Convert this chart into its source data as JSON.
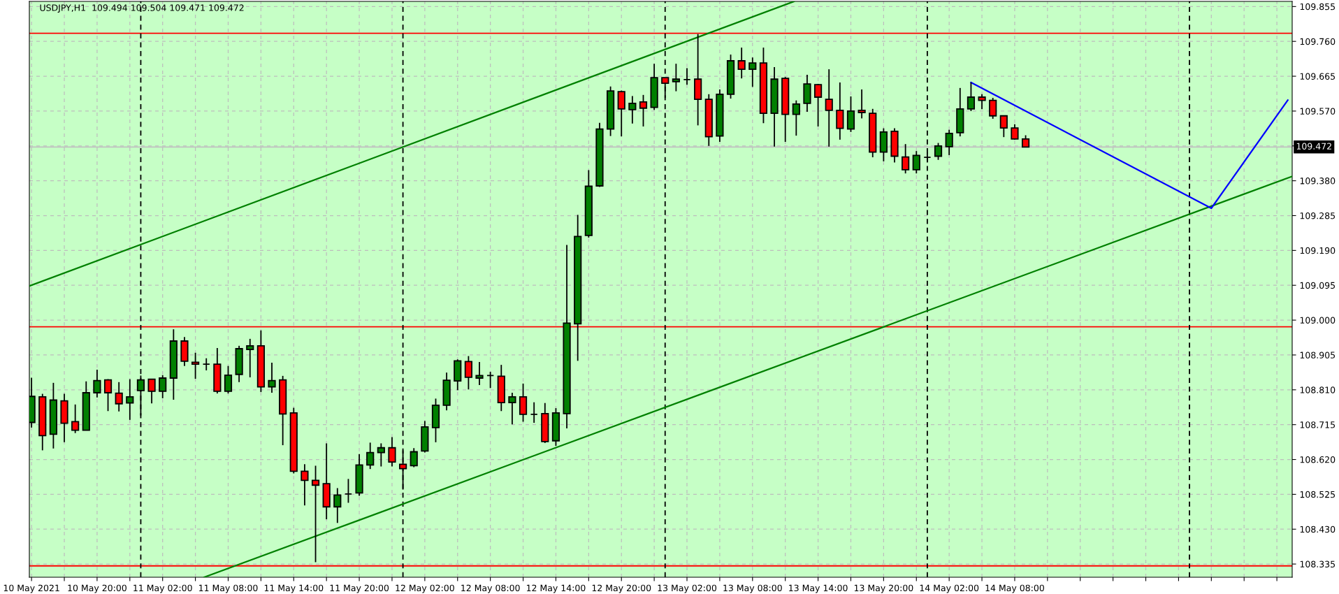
{
  "chart_data": {
    "type": "candlestick",
    "title": "USDJPY,H1  109.494 109.504 109.471 109.472",
    "x": [
      "2021-05-10T14:00",
      "2021-05-10T15:00",
      "2021-05-10T16:00",
      "2021-05-10T17:00",
      "2021-05-10T18:00",
      "2021-05-10T19:00",
      "2021-05-10T20:00",
      "2021-05-10T21:00",
      "2021-05-10T22:00",
      "2021-05-10T23:00",
      "2021-05-11T00:00",
      "2021-05-11T01:00",
      "2021-05-11T02:00",
      "2021-05-11T03:00",
      "2021-05-11T04:00",
      "2021-05-11T05:00",
      "2021-05-11T06:00",
      "2021-05-11T07:00",
      "2021-05-11T08:00",
      "2021-05-11T09:00",
      "2021-05-11T10:00",
      "2021-05-11T11:00",
      "2021-05-11T12:00",
      "2021-05-11T13:00",
      "2021-05-11T14:00",
      "2021-05-11T15:00",
      "2021-05-11T16:00",
      "2021-05-11T17:00",
      "2021-05-11T18:00",
      "2021-05-11T19:00",
      "2021-05-11T20:00",
      "2021-05-11T21:00",
      "2021-05-11T22:00",
      "2021-05-11T23:00",
      "2021-05-12T00:00",
      "2021-05-12T01:00",
      "2021-05-12T02:00",
      "2021-05-12T03:00",
      "2021-05-12T04:00",
      "2021-05-12T05:00",
      "2021-05-12T06:00",
      "2021-05-12T07:00",
      "2021-05-12T08:00",
      "2021-05-12T09:00",
      "2021-05-12T10:00",
      "2021-05-12T11:00",
      "2021-05-12T12:00",
      "2021-05-12T13:00",
      "2021-05-12T14:00",
      "2021-05-12T15:00",
      "2021-05-12T16:00",
      "2021-05-12T17:00",
      "2021-05-12T18:00",
      "2021-05-12T19:00",
      "2021-05-12T20:00",
      "2021-05-12T21:00",
      "2021-05-12T22:00",
      "2021-05-12T23:00",
      "2021-05-13T00:00",
      "2021-05-13T01:00",
      "2021-05-13T02:00",
      "2021-05-13T03:00",
      "2021-05-13T04:00",
      "2021-05-13T05:00",
      "2021-05-13T06:00",
      "2021-05-13T07:00",
      "2021-05-13T08:00",
      "2021-05-13T09:00",
      "2021-05-13T10:00",
      "2021-05-13T11:00",
      "2021-05-13T12:00",
      "2021-05-13T13:00",
      "2021-05-13T14:00",
      "2021-05-13T15:00",
      "2021-05-13T16:00",
      "2021-05-13T17:00",
      "2021-05-13T18:00",
      "2021-05-13T19:00",
      "2021-05-13T20:00",
      "2021-05-13T21:00",
      "2021-05-13T22:00",
      "2021-05-13T23:00",
      "2021-05-14T00:00",
      "2021-05-14T01:00",
      "2021-05-14T02:00",
      "2021-05-14T03:00",
      "2021-05-14T04:00",
      "2021-05-14T05:00",
      "2021-05-14T06:00",
      "2021-05-14T07:00",
      "2021-05-14T08:00",
      "2021-05-14T09:00"
    ],
    "ohlc": [
      [
        108.721,
        108.843,
        108.707,
        108.792
      ],
      [
        108.791,
        108.799,
        108.645,
        108.685
      ],
      [
        108.689,
        108.829,
        108.65,
        108.782
      ],
      [
        108.78,
        108.799,
        108.667,
        108.719
      ],
      [
        108.723,
        108.77,
        108.692,
        108.7
      ],
      [
        108.7,
        108.833,
        108.7,
        108.802
      ],
      [
        108.802,
        108.865,
        108.789,
        108.835
      ],
      [
        108.837,
        108.839,
        108.752,
        108.802
      ],
      [
        108.801,
        108.831,
        108.751,
        108.772
      ],
      [
        108.774,
        108.839,
        108.728,
        108.791
      ],
      [
        108.808,
        108.849,
        108.74,
        108.837
      ],
      [
        108.839,
        108.839,
        108.773,
        108.806
      ],
      [
        108.806,
        108.85,
        108.787,
        108.842
      ],
      [
        108.842,
        108.975,
        108.783,
        108.943
      ],
      [
        108.943,
        108.954,
        108.875,
        108.888
      ],
      [
        108.885,
        108.911,
        108.84,
        108.88
      ],
      [
        108.88,
        108.896,
        108.863,
        108.88
      ],
      [
        108.88,
        108.924,
        108.8,
        108.806
      ],
      [
        108.806,
        108.875,
        108.8,
        108.85
      ],
      [
        108.852,
        108.93,
        108.831,
        108.922
      ],
      [
        108.92,
        108.949,
        108.844,
        108.93
      ],
      [
        108.93,
        108.972,
        108.804,
        108.818
      ],
      [
        108.818,
        108.884,
        108.802,
        108.835
      ],
      [
        108.837,
        108.848,
        108.659,
        108.744
      ],
      [
        108.747,
        108.761,
        108.582,
        108.588
      ],
      [
        108.588,
        108.607,
        108.495,
        108.563
      ],
      [
        108.563,
        108.603,
        108.34,
        108.55
      ],
      [
        108.554,
        108.664,
        108.457,
        108.491
      ],
      [
        108.491,
        108.542,
        108.447,
        108.523
      ],
      [
        108.526,
        108.567,
        108.502,
        108.526
      ],
      [
        108.529,
        108.635,
        108.521,
        108.605
      ],
      [
        108.605,
        108.666,
        108.594,
        108.639
      ],
      [
        108.639,
        108.664,
        108.601,
        108.652
      ],
      [
        108.652,
        108.681,
        108.601,
        108.613
      ],
      [
        108.607,
        108.645,
        108.538,
        108.595
      ],
      [
        108.603,
        108.651,
        108.599,
        108.641
      ],
      [
        108.643,
        108.725,
        108.639,
        108.709
      ],
      [
        108.707,
        108.786,
        108.667,
        108.768
      ],
      [
        108.768,
        108.857,
        108.754,
        108.836
      ],
      [
        108.834,
        108.893,
        108.809,
        108.889
      ],
      [
        108.887,
        108.902,
        108.811,
        108.844
      ],
      [
        108.842,
        108.886,
        108.823,
        108.849
      ],
      [
        108.849,
        108.859,
        108.815,
        108.849
      ],
      [
        108.847,
        108.878,
        108.752,
        108.775
      ],
      [
        108.775,
        108.802,
        108.716,
        108.791
      ],
      [
        108.791,
        108.827,
        108.723,
        108.743
      ],
      [
        108.743,
        108.776,
        108.72,
        108.743
      ],
      [
        108.745,
        108.774,
        108.665,
        108.669
      ],
      [
        108.671,
        108.76,
        108.657,
        108.747
      ],
      [
        108.745,
        109.205,
        108.705,
        108.992
      ],
      [
        108.99,
        109.287,
        108.889,
        109.228
      ],
      [
        109.231,
        109.409,
        109.225,
        109.365
      ],
      [
        109.366,
        109.538,
        109.363,
        109.521
      ],
      [
        109.521,
        109.637,
        109.502,
        109.625
      ],
      [
        109.623,
        109.626,
        109.501,
        109.576
      ],
      [
        109.574,
        109.611,
        109.536,
        109.591
      ],
      [
        109.595,
        109.614,
        109.528,
        109.578
      ],
      [
        109.58,
        109.699,
        109.573,
        109.661
      ],
      [
        109.661,
        109.661,
        109.606,
        109.646
      ],
      [
        109.65,
        109.699,
        109.624,
        109.657
      ],
      [
        109.656,
        109.687,
        109.642,
        109.656
      ],
      [
        109.657,
        109.78,
        109.531,
        109.602
      ],
      [
        109.602,
        109.616,
        109.475,
        109.5
      ],
      [
        109.502,
        109.629,
        109.486,
        109.616
      ],
      [
        109.616,
        109.724,
        109.604,
        109.707
      ],
      [
        109.707,
        109.743,
        109.659,
        109.684
      ],
      [
        109.684,
        109.716,
        109.636,
        109.701
      ],
      [
        109.701,
        109.743,
        109.537,
        109.564
      ],
      [
        109.564,
        109.69,
        109.473,
        109.657
      ],
      [
        109.659,
        109.663,
        109.486,
        109.561
      ],
      [
        109.561,
        109.599,
        109.503,
        109.589
      ],
      [
        109.591,
        109.669,
        109.568,
        109.644
      ],
      [
        109.642,
        109.644,
        109.528,
        109.608
      ],
      [
        109.602,
        109.684,
        109.473,
        109.572
      ],
      [
        109.572,
        109.648,
        109.492,
        109.523
      ],
      [
        109.521,
        109.61,
        109.513,
        109.57
      ],
      [
        109.572,
        109.629,
        109.55,
        109.566
      ],
      [
        109.564,
        109.576,
        109.444,
        109.458
      ],
      [
        109.458,
        109.523,
        109.433,
        109.513
      ],
      [
        109.515,
        109.523,
        109.43,
        109.447
      ],
      [
        109.445,
        109.48,
        109.4,
        109.41
      ],
      [
        109.41,
        109.461,
        109.4,
        109.449
      ],
      [
        109.444,
        109.456,
        109.43,
        109.444
      ],
      [
        109.447,
        109.483,
        109.437,
        109.475
      ],
      [
        109.473,
        109.519,
        109.45,
        109.509
      ],
      [
        109.511,
        109.633,
        109.501,
        109.576
      ],
      [
        109.576,
        109.648,
        109.57,
        109.608
      ],
      [
        109.608,
        109.616,
        109.575,
        109.599
      ],
      [
        109.599,
        109.606,
        109.549,
        109.557
      ],
      [
        109.557,
        109.557,
        109.499,
        109.524
      ],
      [
        109.524,
        109.534,
        109.492,
        109.494
      ],
      [
        109.494,
        109.504,
        109.471,
        109.472
      ]
    ],
    "colors": [
      "#008000",
      "#ff0000",
      "#008000",
      "#ff0000",
      "#ff0000",
      "#008000",
      "#008000",
      "#ff0000",
      "#ff0000",
      "#008000",
      "#008000",
      "#ff0000",
      "#008000",
      "#008000",
      "#ff0000",
      "#ff0000",
      "#000000",
      "#ff0000",
      "#008000",
      "#008000",
      "#008000",
      "#ff0000",
      "#008000",
      "#ff0000",
      "#ff0000",
      "#ff0000",
      "#ff0000",
      "#ff0000",
      "#008000",
      "#000000",
      "#008000",
      "#008000",
      "#008000",
      "#ff0000",
      "#ff0000",
      "#008000",
      "#008000",
      "#008000",
      "#008000",
      "#008000",
      "#ff0000",
      "#008000",
      "#000000",
      "#ff0000",
      "#008000",
      "#ff0000",
      "#000000",
      "#ff0000",
      "#008000",
      "#008000",
      "#008000",
      "#008000",
      "#008000",
      "#008000",
      "#ff0000",
      "#008000",
      "#ff0000",
      "#008000",
      "#ff0000",
      "#008000",
      "#000000",
      "#ff0000",
      "#ff0000",
      "#008000",
      "#008000",
      "#ff0000",
      "#008000",
      "#ff0000",
      "#008000",
      "#ff0000",
      "#008000",
      "#008000",
      "#ff0000",
      "#ff0000",
      "#ff0000",
      "#008000",
      "#ff0000",
      "#ff0000",
      "#008000",
      "#ff0000",
      "#ff0000",
      "#008000",
      "#000000",
      "#008000",
      "#008000",
      "#008000",
      "#008000",
      "#ff0000",
      "#ff0000",
      "#ff0000",
      "#ff0000",
      "#ff0000"
    ],
    "series": [
      {
        "type": "line",
        "color": "#008000",
        "x": [
          "2021-05-10T13:48",
          "2021-05-13T11:48"
        ],
        "values": [
          109.093,
          109.869
        ]
      },
      {
        "type": "line",
        "color": "#008000",
        "x": [
          "2021-05-11T05:48",
          "2021-05-15T09:24"
        ],
        "values": [
          108.299,
          109.392
        ]
      },
      {
        "type": "line",
        "color": "#0000ff",
        "x": [
          "2021-05-14T04:00",
          "2021-05-15T02:00",
          "2021-05-15T09:00"
        ],
        "values": [
          109.648,
          109.305,
          109.6
        ]
      }
    ],
    "ref_lines": [
      {
        "axis": "y",
        "value": 109.782,
        "color": "#ff0000",
        "line_style": "solid"
      },
      {
        "axis": "y",
        "value": 108.982,
        "color": "#ff0000",
        "line_style": "solid"
      },
      {
        "axis": "y",
        "value": 108.33,
        "color": "#ff0000",
        "line_style": "solid"
      },
      {
        "axis": "y",
        "value": 109.472,
        "color": "#c0c0c0",
        "line_style": "solid",
        "label": "109.472"
      },
      {
        "axis": "x",
        "value": "2021-05-11T00:00",
        "color": "#000000",
        "line_style": "dashed"
      },
      {
        "axis": "x",
        "value": "2021-05-12T00:00",
        "color": "#000000",
        "line_style": "dashed"
      },
      {
        "axis": "x",
        "value": "2021-05-13T00:00",
        "color": "#000000",
        "line_style": "dashed"
      },
      {
        "axis": "x",
        "value": "2021-05-14T00:00",
        "color": "#000000",
        "line_style": "dashed"
      },
      {
        "axis": "x",
        "value": "2021-05-15T00:00",
        "color": "#000000",
        "line_style": "dashed"
      }
    ],
    "xlim": [
      "2021-05-10T13:48",
      "2021-05-15T09:24"
    ],
    "xticks": [
      {
        "value": "2021-05-10T14:00",
        "label": "10 May 2021"
      },
      {
        "value": "2021-05-10T17:00",
        "label": null
      },
      {
        "value": "2021-05-10T20:00",
        "label": "10 May 20:00"
      },
      {
        "value": "2021-05-10T23:00",
        "label": null
      },
      {
        "value": "2021-05-11T02:00",
        "label": "11 May 02:00"
      },
      {
        "value": "2021-05-11T05:00",
        "label": null
      },
      {
        "value": "2021-05-11T08:00",
        "label": "11 May 08:00"
      },
      {
        "value": "2021-05-11T11:00",
        "label": null
      },
      {
        "value": "2021-05-11T14:00",
        "label": "11 May 14:00"
      },
      {
        "value": "2021-05-11T17:00",
        "label": null
      },
      {
        "value": "2021-05-11T20:00",
        "label": "11 May 20:00"
      },
      {
        "value": "2021-05-11T23:00",
        "label": null
      },
      {
        "value": "2021-05-12T02:00",
        "label": "12 May 02:00"
      },
      {
        "value": "2021-05-12T05:00",
        "label": null
      },
      {
        "value": "2021-05-12T08:00",
        "label": "12 May 08:00"
      },
      {
        "value": "2021-05-12T11:00",
        "label": null
      },
      {
        "value": "2021-05-12T14:00",
        "label": "12 May 14:00"
      },
      {
        "value": "2021-05-12T17:00",
        "label": null
      },
      {
        "value": "2021-05-12T20:00",
        "label": "12 May 20:00"
      },
      {
        "value": "2021-05-12T23:00",
        "label": null
      },
      {
        "value": "2021-05-13T02:00",
        "label": "13 May 02:00"
      },
      {
        "value": "2021-05-13T05:00",
        "label": null
      },
      {
        "value": "2021-05-13T08:00",
        "label": "13 May 08:00"
      },
      {
        "value": "2021-05-13T11:00",
        "label": null
      },
      {
        "value": "2021-05-13T14:00",
        "label": "13 May 14:00"
      },
      {
        "value": "2021-05-13T17:00",
        "label": null
      },
      {
        "value": "2021-05-13T20:00",
        "label": "13 May 20:00"
      },
      {
        "value": "2021-05-13T23:00",
        "label": null
      },
      {
        "value": "2021-05-14T02:00",
        "label": "14 May 02:00"
      },
      {
        "value": "2021-05-14T05:00",
        "label": null
      },
      {
        "value": "2021-05-14T08:00",
        "label": "14 May 08:00"
      },
      {
        "value": "2021-05-14T11:00",
        "label": null
      },
      {
        "value": "2021-05-14T14:00",
        "label": null
      },
      {
        "value": "2021-05-14T17:00",
        "label": null
      },
      {
        "value": "2021-05-14T20:00",
        "label": null
      },
      {
        "value": "2021-05-14T23:00",
        "label": null
      },
      {
        "value": "2021-05-15T02:00",
        "label": null
      },
      {
        "value": "2021-05-15T05:00",
        "label": null
      },
      {
        "value": "2021-05-15T08:00",
        "label": null
      }
    ],
    "ylim": [
      108.299,
      109.869
    ],
    "yticks": [
      {
        "value": 108.335,
        "label": "108.335"
      },
      {
        "value": 108.43,
        "label": "108.430"
      },
      {
        "value": 108.525,
        "label": "108.525"
      },
      {
        "value": 108.62,
        "label": "108.620"
      },
      {
        "value": 108.715,
        "label": "108.715"
      },
      {
        "value": 108.81,
        "label": "108.810"
      },
      {
        "value": 108.905,
        "label": "108.905"
      },
      {
        "value": 109.0,
        "label": "109.000"
      },
      {
        "value": 109.095,
        "label": "109.095"
      },
      {
        "value": 109.19,
        "label": "109.190"
      },
      {
        "value": 109.285,
        "label": "109.285"
      },
      {
        "value": 109.38,
        "label": "109.380"
      },
      {
        "value": 109.475,
        "label": null
      },
      {
        "value": 109.57,
        "label": "109.570"
      },
      {
        "value": 109.665,
        "label": "109.665"
      },
      {
        "value": 109.76,
        "label": "109.760"
      },
      {
        "value": 109.855,
        "label": "109.855"
      }
    ],
    "grid": true
  }
}
